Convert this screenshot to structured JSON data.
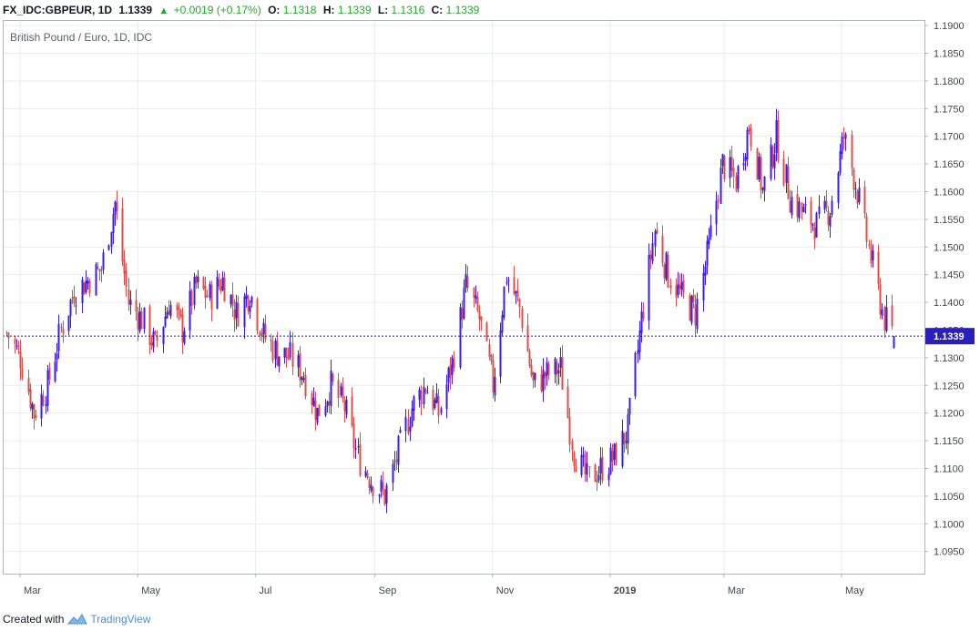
{
  "header": {
    "symbol": "FX_IDC:GBPEUR, 1D",
    "last": "1.1339",
    "change": "+0.0019 (+0.17%)",
    "o_label": "O:",
    "o_value": "1.1318",
    "h_label": "H:",
    "h_value": "1.1339",
    "l_label": "L:",
    "l_value": "1.1316",
    "c_label": "C:",
    "c_value": "1.1339"
  },
  "footer": {
    "created_with": "Created with",
    "brand": "TradingView"
  },
  "colors": {
    "up": "#3a1cf0",
    "down": "#e04e47",
    "grid": "#e9ecef",
    "last_line": "#2a1fb8",
    "price_tag": "#2a1fb8"
  },
  "chart_data": {
    "type": "candlestick",
    "title": "British Pound / Euro, 1D, IDC",
    "last_price": 1.1339,
    "last_price_label": "1.1339",
    "ylim": [
      1.091,
      1.191
    ],
    "y_ticks": [
      "1.0950",
      "1.1000",
      "1.1050",
      "1.1100",
      "1.1150",
      "1.1200",
      "1.1250",
      "1.1300",
      "1.1350",
      "1.1400",
      "1.1450",
      "1.1500",
      "1.1550",
      "1.1600",
      "1.1650",
      "1.1700",
      "1.1750",
      "1.1800",
      "1.1850",
      "1.1900"
    ],
    "x_ticks": [
      {
        "label": "Mar",
        "date": "2018-03-01",
        "bold": false
      },
      {
        "label": "May",
        "date": "2018-05-01",
        "bold": false
      },
      {
        "label": "Jul",
        "date": "2018-07-01",
        "bold": false
      },
      {
        "label": "Sep",
        "date": "2018-09-01",
        "bold": false
      },
      {
        "label": "Nov",
        "date": "2018-11-01",
        "bold": false
      },
      {
        "label": "2019",
        "date": "2019-01-01",
        "bold": true
      },
      {
        "label": "Mar",
        "date": "2019-03-01",
        "bold": false
      },
      {
        "label": "May",
        "date": "2019-05-01",
        "bold": false
      }
    ],
    "x_range": [
      "2018-02-20",
      "2019-06-13"
    ],
    "grid": true,
    "closes": [
      {
        "date": "2018-02-22",
        "close": 1.1345
      },
      {
        "date": "2018-03-01",
        "close": 1.13
      },
      {
        "date": "2018-03-08",
        "close": 1.12
      },
      {
        "date": "2018-03-15",
        "close": 1.125
      },
      {
        "date": "2018-03-22",
        "close": 1.135
      },
      {
        "date": "2018-03-29",
        "close": 1.142
      },
      {
        "date": "2018-04-05",
        "close": 1.144
      },
      {
        "date": "2018-04-12",
        "close": 1.146
      },
      {
        "date": "2018-04-19",
        "close": 1.158
      },
      {
        "date": "2018-04-26",
        "close": 1.14
      },
      {
        "date": "2018-05-03",
        "close": 1.137
      },
      {
        "date": "2018-05-10",
        "close": 1.132
      },
      {
        "date": "2018-05-17",
        "close": 1.14
      },
      {
        "date": "2018-05-24",
        "close": 1.135
      },
      {
        "date": "2018-05-31",
        "close": 1.143
      },
      {
        "date": "2018-06-07",
        "close": 1.141
      },
      {
        "date": "2018-06-14",
        "close": 1.144
      },
      {
        "date": "2018-06-21",
        "close": 1.138
      },
      {
        "date": "2018-06-28",
        "close": 1.142
      },
      {
        "date": "2018-07-05",
        "close": 1.134
      },
      {
        "date": "2018-07-12",
        "close": 1.131
      },
      {
        "date": "2018-07-19",
        "close": 1.13
      },
      {
        "date": "2018-07-26",
        "close": 1.127
      },
      {
        "date": "2018-08-02",
        "close": 1.12
      },
      {
        "date": "2018-08-09",
        "close": 1.125
      },
      {
        "date": "2018-08-16",
        "close": 1.121
      },
      {
        "date": "2018-08-23",
        "close": 1.112
      },
      {
        "date": "2018-08-30",
        "close": 1.108
      },
      {
        "date": "2018-09-06",
        "close": 1.105
      },
      {
        "date": "2018-09-13",
        "close": 1.113
      },
      {
        "date": "2018-09-20",
        "close": 1.121
      },
      {
        "date": "2018-09-27",
        "close": 1.125
      },
      {
        "date": "2018-10-04",
        "close": 1.12
      },
      {
        "date": "2018-10-11",
        "close": 1.129
      },
      {
        "date": "2018-10-18",
        "close": 1.143
      },
      {
        "date": "2018-10-25",
        "close": 1.137
      },
      {
        "date": "2018-11-01",
        "close": 1.125
      },
      {
        "date": "2018-11-08",
        "close": 1.145
      },
      {
        "date": "2018-11-15",
        "close": 1.139
      },
      {
        "date": "2018-11-22",
        "close": 1.125
      },
      {
        "date": "2018-11-29",
        "close": 1.127
      },
      {
        "date": "2018-12-06",
        "close": 1.128
      },
      {
        "date": "2018-12-13",
        "close": 1.113
      },
      {
        "date": "2018-12-20",
        "close": 1.108
      },
      {
        "date": "2018-12-27",
        "close": 1.11
      },
      {
        "date": "2019-01-03",
        "close": 1.112
      },
      {
        "date": "2019-01-10",
        "close": 1.117
      },
      {
        "date": "2019-01-17",
        "close": 1.137
      },
      {
        "date": "2019-01-24",
        "close": 1.153
      },
      {
        "date": "2019-01-31",
        "close": 1.145
      },
      {
        "date": "2019-02-07",
        "close": 1.141
      },
      {
        "date": "2019-02-14",
        "close": 1.138
      },
      {
        "date": "2019-02-21",
        "close": 1.15
      },
      {
        "date": "2019-02-28",
        "close": 1.165
      },
      {
        "date": "2019-03-07",
        "close": 1.162
      },
      {
        "date": "2019-03-14",
        "close": 1.172
      },
      {
        "date": "2019-03-21",
        "close": 1.16
      },
      {
        "date": "2019-03-28",
        "close": 1.17
      },
      {
        "date": "2019-04-04",
        "close": 1.159
      },
      {
        "date": "2019-04-11",
        "close": 1.156
      },
      {
        "date": "2019-04-18",
        "close": 1.154
      },
      {
        "date": "2019-04-25",
        "close": 1.157
      },
      {
        "date": "2019-05-02",
        "close": 1.17
      },
      {
        "date": "2019-05-09",
        "close": 1.16
      },
      {
        "date": "2019-05-16",
        "close": 1.148
      },
      {
        "date": "2019-05-23",
        "close": 1.137
      },
      {
        "date": "2019-05-28",
        "close": 1.1339
      }
    ]
  }
}
